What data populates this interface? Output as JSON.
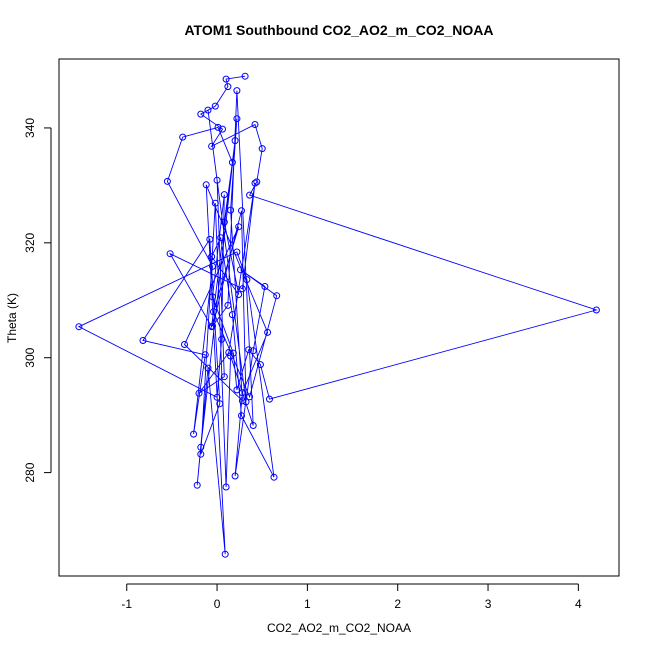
{
  "chart_data": {
    "type": "scatter",
    "title": "ATOM1 Southbound CO2_AO2_m_CO2_NOAA",
    "xlabel": "CO2_AO2_m_CO2_NOAA",
    "ylabel": "Theta (K)",
    "xlim": [
      -1.75,
      4.45
    ],
    "ylim": [
      262,
      352
    ],
    "xticks": [
      -1,
      0,
      1,
      2,
      3,
      4
    ],
    "yticks": [
      280,
      300,
      320,
      340
    ],
    "grid": false,
    "legend": "none",
    "series": [
      {
        "color": "#0000ff",
        "marker": "open-circle",
        "connected": true,
        "points": [
          [
            0.31,
            349.0
          ],
          [
            0.1,
            348.5
          ],
          [
            0.12,
            347.2
          ],
          [
            -0.02,
            343.8
          ],
          [
            -0.18,
            342.4
          ],
          [
            0.06,
            339.8
          ],
          [
            -0.06,
            336.8
          ],
          [
            0.42,
            340.6
          ],
          [
            0.5,
            336.4
          ],
          [
            0.44,
            330.6
          ],
          [
            0.36,
            328.3
          ],
          [
            4.2,
            308.3
          ],
          [
            0.58,
            292.8
          ],
          [
            0.48,
            298.8
          ],
          [
            0.35,
            301.4
          ],
          [
            0.22,
            294.4
          ],
          [
            0.18,
            300.8
          ],
          [
            -0.05,
            310.6
          ],
          [
            0.08,
            328.4
          ],
          [
            0.05,
            303.2
          ],
          [
            0.0,
            293.1
          ],
          [
            -1.53,
            305.4
          ],
          [
            0.22,
            318.4
          ],
          [
            0.33,
            313.6
          ],
          [
            0.63,
            279.2
          ],
          [
            0.27,
            289.9
          ],
          [
            0.17,
            307.5
          ],
          [
            0.04,
            320.9
          ],
          [
            -0.06,
            317.6
          ],
          [
            0.24,
            311.0
          ],
          [
            0.08,
            323.6
          ],
          [
            0.17,
            334.0
          ],
          [
            0.01,
            340.1
          ],
          [
            -0.38,
            338.4
          ],
          [
            -0.55,
            330.7
          ],
          [
            -0.05,
            315.9
          ],
          [
            -0.26,
            286.7
          ],
          [
            -0.13,
            300.5
          ],
          [
            -0.82,
            303.0
          ],
          [
            -0.08,
            320.6
          ],
          [
            0.03,
            292.0
          ],
          [
            -0.18,
            283.2
          ],
          [
            -0.02,
            326.9
          ],
          [
            0.1,
            277.5
          ],
          [
            0.15,
            300.3
          ],
          [
            0.4,
            288.2
          ],
          [
            0.22,
            346.5
          ],
          [
            0.12,
            309.1
          ],
          [
            -0.05,
            305.5
          ],
          [
            0.27,
            325.6
          ],
          [
            0.32,
            292.3
          ],
          [
            -0.1,
            343.1
          ],
          [
            0.0,
            330.9
          ],
          [
            0.08,
            296.7
          ],
          [
            -0.2,
            293.8
          ],
          [
            0.13,
            300.9
          ],
          [
            0.42,
            330.4
          ],
          [
            0.28,
            312.0
          ],
          [
            -0.52,
            318.1
          ],
          [
            -0.06,
            305.4
          ],
          [
            0.2,
            337.8
          ],
          [
            -0.18,
            284.4
          ],
          [
            -0.22,
            277.8
          ],
          [
            -0.1,
            298.2
          ],
          [
            0.09,
            265.8
          ],
          [
            -0.12,
            330.1
          ],
          [
            0.56,
            304.4
          ],
          [
            0.28,
            293.9
          ],
          [
            0.2,
            279.4
          ],
          [
            0.4,
            301.2
          ],
          [
            0.53,
            312.4
          ],
          [
            0.26,
            315.3
          ],
          [
            0.66,
            310.8
          ],
          [
            0.36,
            293.2
          ],
          [
            -0.04,
            308.0
          ],
          [
            0.24,
            322.8
          ],
          [
            -0.36,
            302.3
          ],
          [
            0.28,
            292.5
          ],
          [
            0.15,
            325.7
          ],
          [
            0.22,
            341.6
          ]
        ]
      }
    ]
  }
}
